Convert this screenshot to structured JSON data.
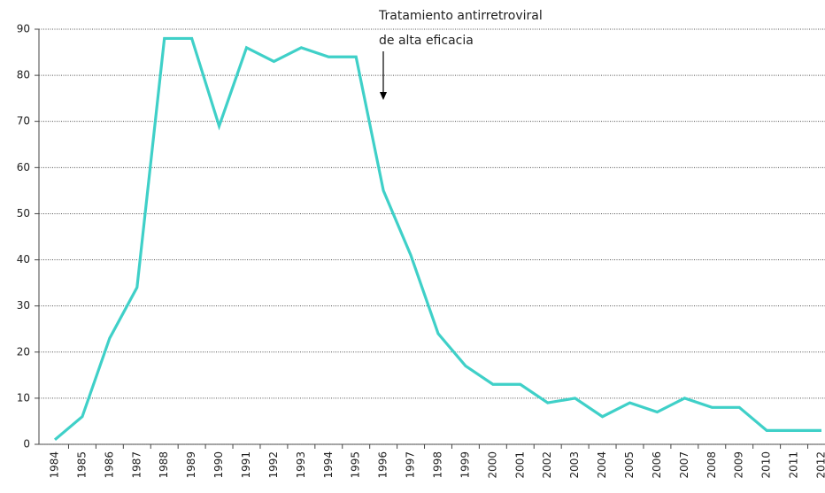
{
  "chart_data": {
    "type": "line",
    "annotation": [
      "Tratamiento antirretroviral",
      "de alta eficacia"
    ],
    "categories": [
      "1984",
      "1985",
      "1986",
      "1987",
      "1988",
      "1989",
      "1990",
      "1991",
      "1992",
      "1993",
      "1994",
      "1995",
      "1996",
      "1997",
      "1998",
      "1999",
      "2000",
      "2001",
      "2002",
      "2003",
      "2004",
      "2005",
      "2006",
      "2007",
      "2008",
      "2009",
      "2010",
      "2011",
      "2012"
    ],
    "series": [
      {
        "color": "#3fd0c8",
        "values": [
          1,
          6,
          23,
          34,
          88,
          88,
          69,
          86,
          83,
          86,
          84,
          84,
          55,
          41,
          24,
          17,
          13,
          13,
          9,
          10,
          6,
          9,
          7,
          10,
          8,
          8,
          3,
          3,
          3
        ]
      }
    ],
    "ylim": [
      0,
      90
    ],
    "yticks": [
      0,
      10,
      20,
      30,
      40,
      50,
      60,
      70,
      80,
      90
    ],
    "grid": true
  }
}
